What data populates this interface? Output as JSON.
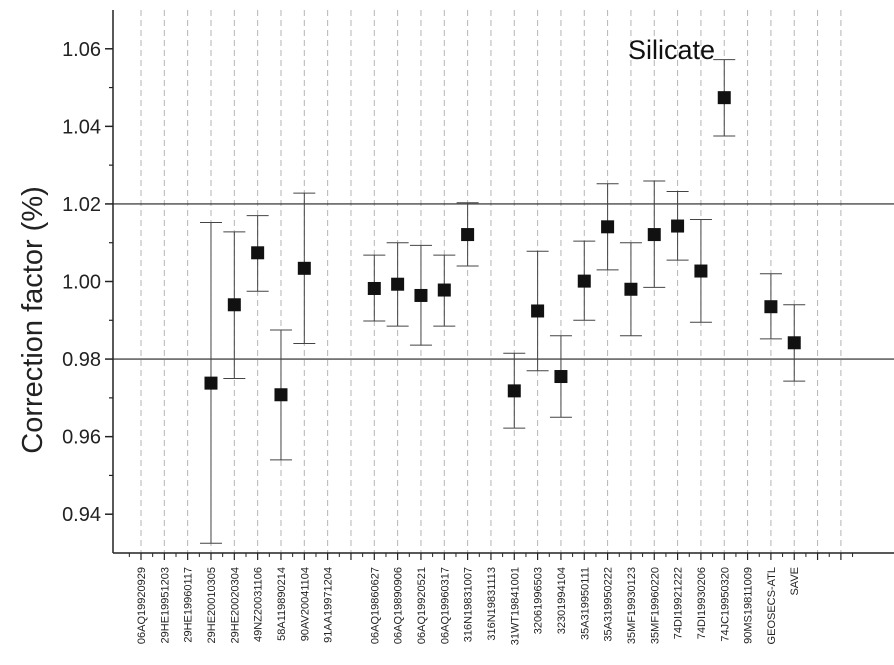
{
  "chart_data": {
    "type": "scatter",
    "title": "",
    "xlabel": "",
    "ylabel": "Correction factor (%)",
    "ylim": [
      0.93,
      1.07
    ],
    "yticks": [
      0.94,
      0.96,
      0.98,
      1.0,
      1.02,
      1.04,
      1.06
    ],
    "ytick_labels": [
      "0.94",
      "0.96",
      "0.98",
      "1.00",
      "1.02",
      "1.04",
      "1.06"
    ],
    "annotation": "Silicate",
    "reference_lines": [
      0.98,
      1.02
    ],
    "grid": "vertical dashed",
    "categories": [
      "06AQ19920929",
      "29HE19951203",
      "29HE19960117",
      "29HE20010305",
      "29HE20020304",
      "49NZ20031106",
      "58A119890214",
      "90AV20041104",
      "91AA19971204",
      "",
      "06AQ19860627",
      "06AQ19890906",
      "06AQ19920521",
      "06AQ19960317",
      "316N19831007",
      "316N19831113",
      "31WT19841001",
      "32061996503",
      "32301994104",
      "35A319950111",
      "35A319950222",
      "35MF19930123",
      "35MF19960220",
      "74DI19921222",
      "74DI19930206",
      "74JC19950320",
      "90MS19811009",
      "GEOSECS-ATL",
      "SAVE"
    ],
    "points": [
      {
        "category": "29HE20010305",
        "y": 0.9738,
        "low": 0.9325,
        "high": 1.0152
      },
      {
        "category": "29HE20020304",
        "y": 0.994,
        "low": 0.975,
        "high": 1.0128
      },
      {
        "category": "49NZ20031106",
        "y": 1.0074,
        "low": 0.9975,
        "high": 1.017
      },
      {
        "category": "58A119890214",
        "y": 0.9708,
        "low": 0.954,
        "high": 0.9875
      },
      {
        "category": "90AV20041104",
        "y": 1.0034,
        "low": 0.984,
        "high": 1.0228
      },
      {
        "category": "06AQ19860627",
        "y": 0.9982,
        "low": 0.9898,
        "high": 1.0068
      },
      {
        "category": "06AQ19890906",
        "y": 0.9993,
        "low": 0.9885,
        "high": 1.01
      },
      {
        "category": "06AQ19920521",
        "y": 0.9964,
        "low": 0.9836,
        "high": 1.0093
      },
      {
        "category": "06AQ19960317",
        "y": 0.9978,
        "low": 0.9885,
        "high": 1.0068
      },
      {
        "category": "316N19831007",
        "y": 1.0121,
        "low": 1.004,
        "high": 1.0203
      },
      {
        "category": "31WT19841001",
        "y": 0.9718,
        "low": 0.9622,
        "high": 0.9815
      },
      {
        "category": "32061996503",
        "y": 0.9924,
        "low": 0.977,
        "high": 1.0078
      },
      {
        "category": "32301994104",
        "y": 0.9755,
        "low": 0.965,
        "high": 0.986
      },
      {
        "category": "35A319950111",
        "y": 1.0001,
        "low": 0.99,
        "high": 1.0104
      },
      {
        "category": "35A319950222",
        "y": 1.0141,
        "low": 1.003,
        "high": 1.0252
      },
      {
        "category": "35MF19930123",
        "y": 0.998,
        "low": 0.986,
        "high": 1.01
      },
      {
        "category": "35MF19960220",
        "y": 1.0121,
        "low": 0.9985,
        "high": 1.0259
      },
      {
        "category": "74DI19921222",
        "y": 1.0143,
        "low": 1.0055,
        "high": 1.0232
      },
      {
        "category": "74DI19930206",
        "y": 1.0027,
        "low": 0.9895,
        "high": 1.016
      },
      {
        "category": "74JC19950320",
        "y": 1.0474,
        "low": 1.0375,
        "high": 1.0572
      },
      {
        "category": "GEOSECS-ATL",
        "y": 0.9935,
        "low": 0.9852,
        "high": 1.002
      },
      {
        "category": "SAVE",
        "y": 0.9842,
        "low": 0.9743,
        "high": 0.994
      }
    ]
  }
}
